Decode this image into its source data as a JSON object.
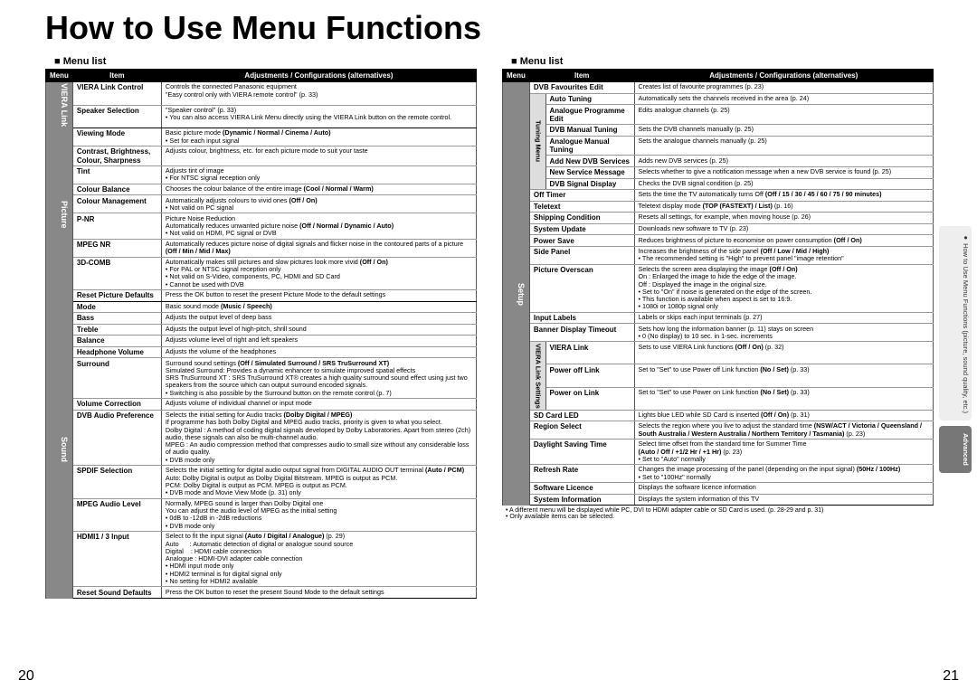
{
  "title": "How to Use Menu Functions",
  "menu_list_label": "Menu list",
  "headers": [
    "Menu",
    "Item",
    "Adjustments / Configurations (alternatives)"
  ],
  "page_left": "20",
  "page_right": "21",
  "side_tabs": [
    {
      "text": "How to Use Menu Functions\n(picture, sound quality, etc.)",
      "cls": "light",
      "bullet": true
    },
    {
      "text": "Advanced",
      "cls": "dark",
      "bullet": false
    }
  ],
  "left_categories": [
    {
      "name": "VIERA Link",
      "rows": [
        {
          "item": "VIERA Link Control",
          "desc": "Controls the connected Panasonic equipment<br>\"Easy control only with VIERA remote control\" (p. 33)"
        },
        {
          "item": "Speaker Selection",
          "desc": "\"Speaker control\" (p. 33)<br><span class='bullet'></span>You can also access VIERA Link Menu directly using the VIERA Link button on the remote control.",
          "section_end": true
        }
      ]
    },
    {
      "name": "Picture",
      "rows": [
        {
          "item": "Viewing Mode",
          "desc": "Basic picture mode <b>(Dynamic / Normal / Cinema / Auto)</b><br><span class='bullet'></span>Set for each input signal"
        },
        {
          "item": "Contrast, Brightness, Colour, Sharpness",
          "desc": "Adjusts colour, brightness, etc. for each picture mode to suit your taste"
        },
        {
          "item": "Tint",
          "desc": "Adjusts tint of image<br><span class='bullet'></span>For NTSC signal reception only"
        },
        {
          "item": "Colour Balance",
          "desc": "Chooses the colour balance of the entire image <b>(Cool / Normal / Warm)</b>"
        },
        {
          "item": "Colour Management",
          "desc": "Automatically adjusts colours to vivid ones <b>(Off / On)</b><br><span class='bullet'></span>Not valid on PC signal"
        },
        {
          "item": "P-NR",
          "desc": "Picture Noise Reduction<br>Automatically reduces unwanted picture noise <b>(Off / Normal / Dynamic / Auto)</b><br><span class='bullet'></span>Not valid on HDMI, PC signal or DVB"
        },
        {
          "item": "MPEG NR",
          "desc": "Automatically reduces picture noise of digital signals and flicker noise in the contoured parts of a picture <b>(Off / Min / Mid / Max)</b>"
        },
        {
          "item": "3D-COMB",
          "desc": "Automatically makes still pictures and slow pictures look more vivid <b>(Off / On)</b><br><span class='bullet'></span>For PAL or NTSC signal reception only<br><span class='bullet'></span>Not valid on S-Video, components, PC, HDMI and SD Card<br><span class='bullet'></span>Cannot be used with DVB"
        },
        {
          "item": "Reset Picture Defaults",
          "desc": "Press the OK button to reset the present Picture Mode to the default settings",
          "section_end": true
        }
      ]
    },
    {
      "name": "Sound",
      "rows": [
        {
          "item": "Mode",
          "desc": "Basic sound mode <b>(Music / Speech)</b>"
        },
        {
          "item": "Bass",
          "desc": "Adjusts the output level of deep bass"
        },
        {
          "item": "Treble",
          "desc": "Adjusts the output level of high-pitch, shrill sound"
        },
        {
          "item": "Balance",
          "desc": "Adjusts volume level of right and left speakers"
        },
        {
          "item": "Headphone Volume",
          "desc": "Adjusts the volume of the headphones"
        },
        {
          "item": "Surround",
          "desc": "Surround sound settings <b>(Off / Simulated Surround / SRS TruSurround XT)</b><br>Simulated Surround: Provides a dynamic enhancer to simulate improved spatial effects<br>SRS TruSurround XT : SRS TruSurround XT® creates a high quality surround sound effect using just two speakers from the source which can output surround encoded signals.<br><span class='bullet'></span>Switching is also possible by the Surround button on the remote control (p. 7)"
        },
        {
          "item": "Volume Correction",
          "desc": "Adjusts volume of individual channel or input mode"
        },
        {
          "item": "DVB Audio Preference",
          "desc": "Selects the initial setting for Audio tracks <b>(Dolby Digital / MPEG)</b><br>If programme has both Dolby Digital and MPEG audio tracks, priority is given to what you select.<br>Dolby Digital : A method of coding digital signals developed by Dolby Laboratories. Apart from stereo (2ch) audio, these signals can also be multi-channel audio.<br>MPEG : An audio compression method that compresses audio to small size without any considerable loss of audio quality.<br><span class='bullet'></span>DVB mode only"
        },
        {
          "item": "SPDIF Selection",
          "desc": "Selects the initial setting for digital audio output signal from DIGITAL AUDIO OUT terminal <b>(Auto / PCM)</b><br>Auto: Dolby Digital is output as Dolby Digital Bitstream. MPEG is output as PCM.<br>PCM: Dolby Digital is output as PCM. MPEG is output as PCM.<br><span class='bullet'></span>DVB mode and Movie View Mode (p. 31) only"
        },
        {
          "item": "MPEG Audio Level",
          "desc": "Normally, MPEG sound is larger than Dolby Digital one<br>You can adjust the audio level of MPEG as the initial setting<br><span class='bullet'></span>0dB to -12dB in -2dB reductions<br><span class='bullet'></span>DVB mode only"
        },
        {
          "item": "HDMI1 / 3 Input",
          "desc": "Select to fit the input signal <b>(Auto / Digital / Analogue)</b> (p. 29)<br>Auto&nbsp;&nbsp;&nbsp;&nbsp;&nbsp;&nbsp;: Automatic detection of digital or analogue sound source<br>Digital&nbsp;&nbsp;&nbsp;&nbsp;: HDMI cable connection<br>Analogue : HDMI-DVI adapter cable connection<br><span class='bullet'></span>HDMI input mode only<br><span class='bullet'></span>HDMI2 terminal is for digital signal only<br><span class='bullet'></span>No setting for HDMI2 available"
        },
        {
          "item": "Reset Sound Defaults",
          "desc": "Press the OK button to reset the present Sound Mode to the default settings",
          "section_end": true
        }
      ]
    }
  ],
  "right_categories": [
    {
      "name": "Setup",
      "subgroups": [
        {
          "name": null,
          "rows": [
            {
              "item": "DVB Favourites Edit",
              "desc": "Creates list of favourite programmes (p. 23)",
              "colspan": 2
            }
          ]
        },
        {
          "name": "Tuning Menu",
          "rows": [
            {
              "item": "Auto Tuning",
              "desc": "Automatically sets the channels received in the area (p. 24)",
              "indent": true
            },
            {
              "item": "Analogue Programme Edit",
              "desc": "Edits analogue channels (p. 25)",
              "indent": true
            },
            {
              "item": "DVB Manual Tuning",
              "desc": "Sets the DVB channels manually (p. 25)",
              "indent": true
            },
            {
              "item": "Analogue Manual Tuning",
              "desc": "Sets the analogue channels manually (p. 25)",
              "indent": true
            },
            {
              "item": "Add New DVB Services",
              "desc": "Adds new DVB services (p. 25)",
              "indent": true
            },
            {
              "item": "New Service Message",
              "desc": "Selects whether to give a notification message when a new DVB service is found (p. 25)",
              "indent": true
            },
            {
              "item": "DVB Signal Display",
              "desc": "Checks the DVB signal condition (p. 25)",
              "indent": true
            }
          ]
        },
        {
          "name": null,
          "rows": [
            {
              "item": "Off Timer",
              "desc": "Sets the time the TV automatically turns Off <b>(Off / 15 / 30 / 45 / 60 / 75 / 90 minutes)</b>",
              "colspan": 2
            },
            {
              "item": "Teletext",
              "desc": "Teletext display mode <b>(TOP (FASTEXT) / List)</b> (p. 16)",
              "colspan": 2
            },
            {
              "item": "Shipping Condition",
              "desc": "Resets all settings, for example, when moving house (p. 26)",
              "colspan": 2
            },
            {
              "item": "System Update",
              "desc": "Downloads new software to TV (p. 23)",
              "colspan": 2
            },
            {
              "item": "Power Save",
              "desc": "Reduces brightness of picture to economise on power consumption <b>(Off / On)</b>",
              "colspan": 2
            },
            {
              "item": "Side Panel",
              "desc": "Increases the brightness of the side panel <b>(Off / Low / Mid / High)</b><br><span class='bullet'></span>The recommended setting is \"High\" to prevent panel \"image retention\"",
              "colspan": 2
            },
            {
              "item": "Picture Overscan",
              "desc": "Selects the screen area displaying the image <b>(Off / On)</b><br>On : Enlarged the image to hide the edge of the image.<br>Off : Displayed the image in the original size.<br><span class='bullet'></span>Set to \"On\" if noise is generated on the edge of the screen.<br><span class='bullet'></span>This function is available when aspect is set to 16:9.<br><span class='bullet'></span>1080i or 1080p signal only",
              "colspan": 2
            },
            {
              "item": "Input Labels",
              "desc": "Labels or skips each input terminals (p. 27)",
              "colspan": 2
            },
            {
              "item": "Banner Display Timeout",
              "desc": "Sets how long the information banner (p. 11) stays on screen<br><span class='bullet'></span>0 (No display) to 10 sec. in 1-sec. increments",
              "colspan": 2
            }
          ]
        },
        {
          "name": "VIERA Link Settings",
          "rows": [
            {
              "item": "VIERA Link",
              "desc": "Sets to use VIERA Link functions <b>(Off / On)</b> (p. 32)",
              "indent": true
            },
            {
              "item": "Power off Link",
              "desc": "Set to \"Set\" to use Power off Link function <b>(No / Set)</b> (p. 33)",
              "indent": true
            },
            {
              "item": "Power on Link",
              "desc": "Set to \"Set\" to use Power on Link function <b>(No / Set)</b> (p. 33)",
              "indent": true
            }
          ]
        },
        {
          "name": null,
          "rows": [
            {
              "item": "SD Card LED",
              "desc": "Lights blue LED while SD Card is inserted <b>(Off / On)</b> (p. 31)",
              "colspan": 2
            },
            {
              "item": "Region Select",
              "desc": "Selects the region where you live to adjust the standard time <b>(NSW/ACT / Victoria / Queensland / South Australia / Western Australia / Northern Territory / Tasmania)</b> (p. 23)",
              "colspan": 2
            },
            {
              "item": "Daylight Saving Time",
              "desc": "Select time offset from the standard time for Summer Time<br><b>(Auto / Off / +1/2 Hr / +1 Hr)</b> (p. 23)<br><span class='bullet'></span>Set to \"Auto\" normally",
              "colspan": 2
            },
            {
              "item": "Refresh Rate",
              "desc": "Changes the image processing of the panel (depending on the input signal) <b>(50Hz / 100Hz)</b><br><span class='bullet'></span>Set to \"100Hz\" normally",
              "colspan": 2
            },
            {
              "item": "Software Licence",
              "desc": "Displays the software licence information",
              "colspan": 2
            },
            {
              "item": "System Information",
              "desc": "Displays the system information of this TV",
              "colspan": 2,
              "section_end": true
            }
          ]
        }
      ]
    }
  ],
  "footnotes": [
    "A different menu will be displayed while PC, DVI to HDMI adapter cable or SD Card is used. (p. 28-29 and p. 31)",
    "Only available items can be selected."
  ]
}
